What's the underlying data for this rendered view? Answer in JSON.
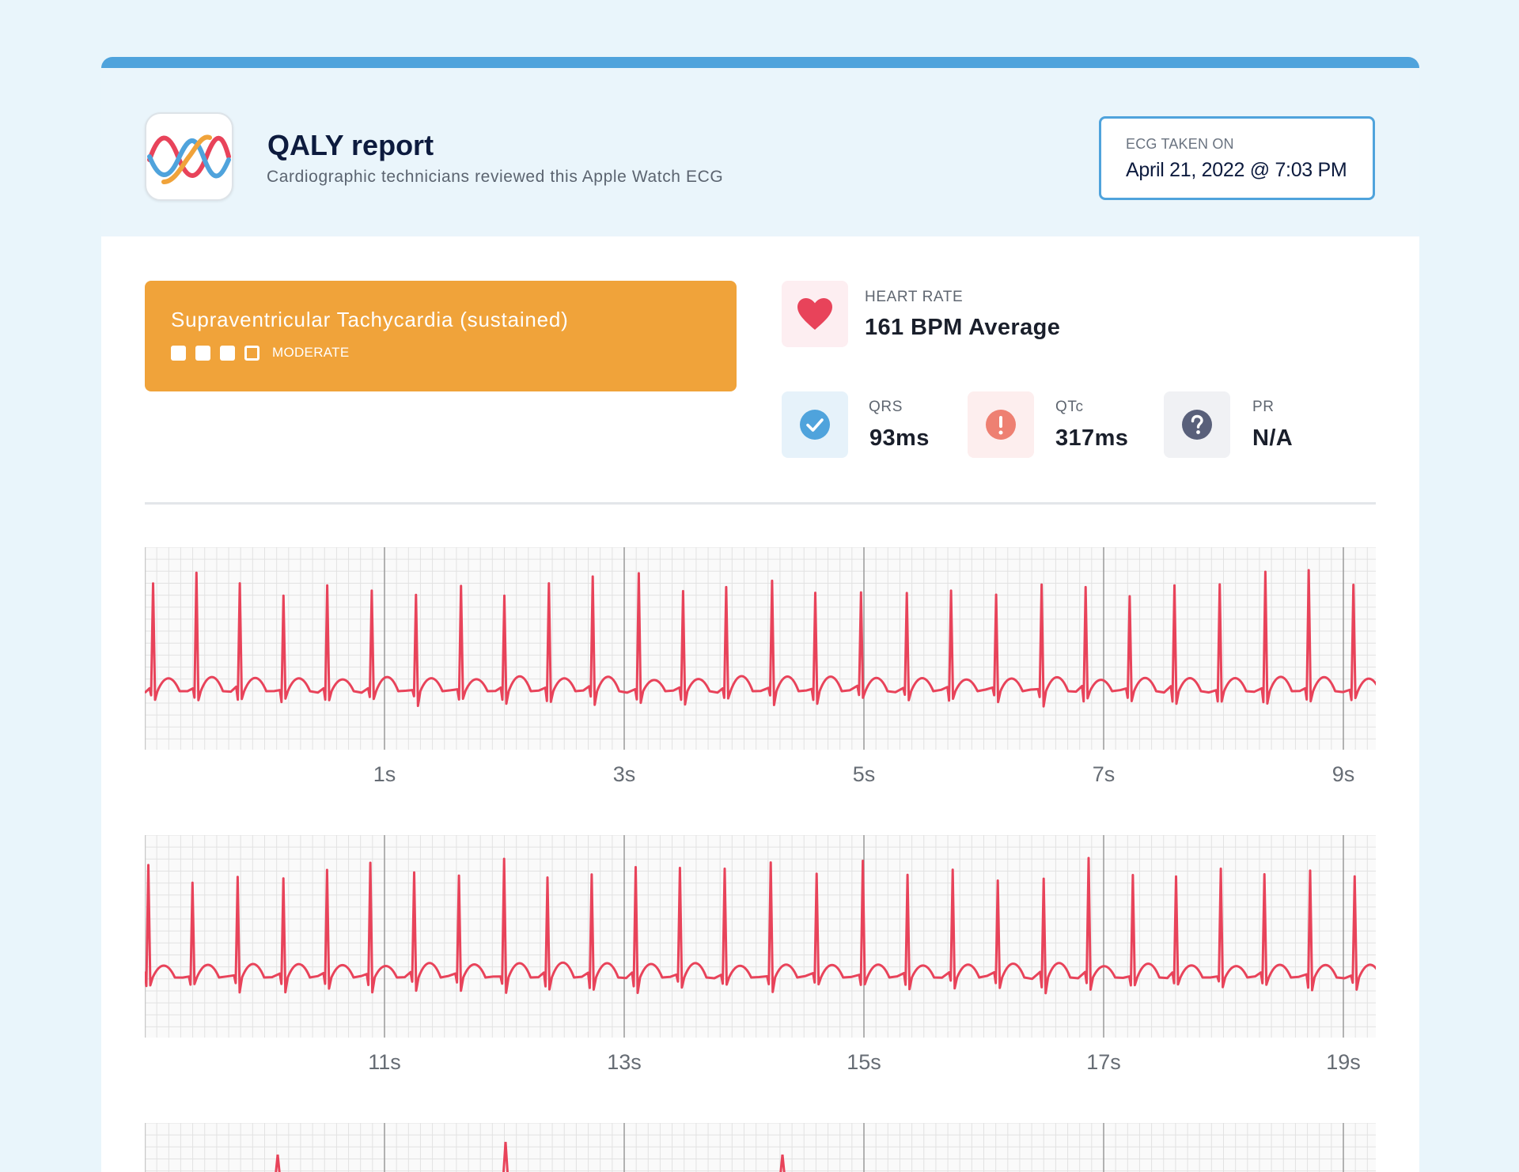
{
  "header": {
    "logo_icon": "qaly-wave-logo-icon",
    "title": "QALY report",
    "subtitle": "Cardiographic technicians reviewed this Apple Watch ECG",
    "date_label": "ECG TAKEN ON",
    "date_value": "April 21, 2022 @ 7:03 PM"
  },
  "diagnosis": {
    "title": "Supraventricular Tachycardia (sustained)",
    "severity_label": "MODERATE",
    "severity_level": 3,
    "severity_max": 4,
    "color": "#f0a33a"
  },
  "metrics": {
    "heart_rate": {
      "label": "HEART RATE",
      "value": "161 BPM Average",
      "icon": "heart-icon",
      "color": "#e8435a"
    },
    "qrs": {
      "label": "QRS",
      "value": "93ms",
      "icon": "check-circle-icon",
      "color": "#4fa3dc"
    },
    "qtc": {
      "label": "QTc",
      "value": "317ms",
      "icon": "exclamation-circle-icon",
      "color": "#ee8072"
    },
    "pr": {
      "label": "PR",
      "value": "N/A",
      "icon": "question-circle-icon",
      "color": "#59607a"
    }
  },
  "ecg": {
    "trace_color": "#e8435a",
    "strips": [
      {
        "ticks": [
          "1s",
          "3s",
          "5s",
          "7s",
          "9s"
        ]
      },
      {
        "ticks": [
          "11s",
          "13s",
          "15s",
          "17s",
          "19s"
        ]
      },
      {
        "ticks": []
      }
    ]
  }
}
